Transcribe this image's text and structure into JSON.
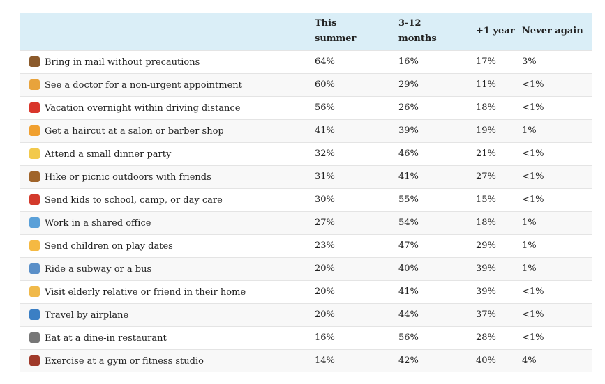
{
  "table": {
    "header": [
      "This summer",
      "3-12 months",
      "+1 year",
      "Never again"
    ],
    "rows": [
      [
        "Bring in mail without precautions",
        "64%",
        "16%",
        "17%",
        "3%"
      ],
      [
        "See a doctor for a non-urgent appointment",
        "60%",
        "29%",
        "11%",
        "<1%"
      ],
      [
        "Vacation overnight within driving distance",
        "56%",
        "26%",
        "18%",
        "<1%"
      ],
      [
        "Get a haircut at a salon or barber shop",
        "41%",
        "39%",
        "19%",
        "1%"
      ],
      [
        "Attend a small dinner party",
        "32%",
        "46%",
        "21%",
        "<1%"
      ],
      [
        "Hike or picnic outdoors with friends",
        "31%",
        "41%",
        "27%",
        "<1%"
      ],
      [
        "Send kids to school, camp, or day care",
        "30%",
        "55%",
        "15%",
        "<1%"
      ],
      [
        "Work in a shared office",
        "27%",
        "54%",
        "18%",
        "1%"
      ],
      [
        "Send children on play dates",
        "23%",
        "47%",
        "29%",
        "1%"
      ],
      [
        "Ride a subway or a bus",
        "20%",
        "40%",
        "39%",
        "1%"
      ],
      [
        "Visit elderly relative or friend in their home",
        "20%",
        "41%",
        "39%",
        "<1%"
      ],
      [
        "Travel by airplane",
        "20%",
        "44%",
        "37%",
        "<1%"
      ],
      [
        "Eat at a dine-in restaurant",
        "16%",
        "56%",
        "28%",
        "<1%"
      ],
      [
        "Exercise at a gym or fitness studio",
        "14%",
        "42%",
        "40%",
        "4%"
      ]
    ]
  }
}
